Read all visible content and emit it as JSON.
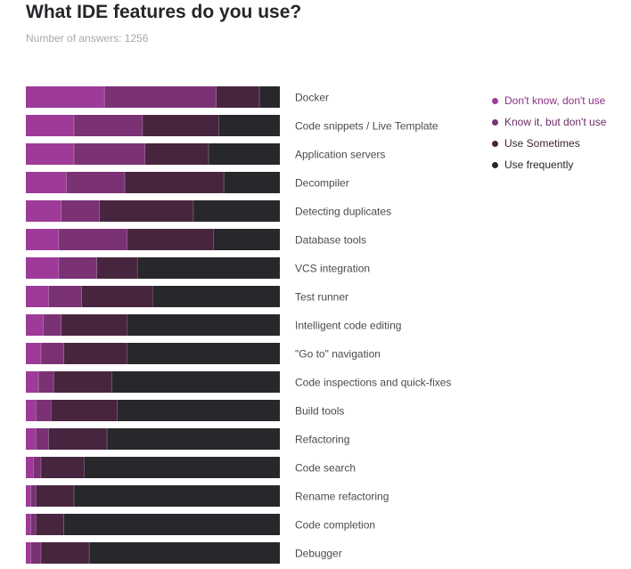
{
  "header": {
    "title": "What IDE features do you use?",
    "subtitle": "Number of answers: 1256"
  },
  "chart_data": {
    "type": "bar",
    "orientation": "horizontal",
    "stacked": true,
    "normalized_percent": true,
    "title": "What IDE features do you use?",
    "xlim": [
      0,
      100
    ],
    "grid": false,
    "legend_position": "top-right",
    "categories": [
      "Docker",
      "Code snippets / Live Template",
      "Application servers",
      "Decompiler",
      "Detecting duplicates",
      "Database tools",
      "VCS integration",
      "Test runner",
      "Intelligent code editing",
      "\"Go to\" navigation",
      "Code inspections and quick-fixes",
      "Build tools",
      "Refactoring",
      "Code search",
      "Rename refactoring",
      "Code completion",
      "Debugger"
    ],
    "series": [
      {
        "name": "Don't know, don't use",
        "color": "#9e3b98",
        "values": [
          31,
          19,
          19,
          16,
          14,
          13,
          13,
          9,
          7,
          6,
          5,
          4,
          4,
          3,
          2,
          2,
          2
        ]
      },
      {
        "name": "Know it, but don't use",
        "color": "#7a3274",
        "values": [
          44,
          27,
          28,
          23,
          15,
          27,
          15,
          13,
          7,
          9,
          6,
          6,
          5,
          3,
          2,
          2,
          4
        ]
      },
      {
        "name": "Use Sometimes",
        "color": "#48253f",
        "values": [
          17,
          30,
          25,
          39,
          37,
          34,
          16,
          28,
          26,
          25,
          23,
          26,
          23,
          17,
          15,
          11,
          19
        ]
      },
      {
        "name": "Use frequently",
        "color": "#28282c",
        "values": [
          8,
          24,
          28,
          22,
          34,
          26,
          56,
          50,
          60,
          60,
          66,
          64,
          68,
          77,
          81,
          85,
          75
        ]
      }
    ]
  },
  "legend": {
    "items": [
      {
        "label": "Don't know, don't use",
        "color": "#9e3b98",
        "text_color": "#8a2f83"
      },
      {
        "label": "Know it, but don't use",
        "color": "#7a3274",
        "text_color": "#6b2b65"
      },
      {
        "label": "Use Sometimes",
        "color": "#48253f",
        "text_color": "#3a2535"
      },
      {
        "label": "Use frequently",
        "color": "#28282c",
        "text_color": "#28282c"
      }
    ]
  }
}
